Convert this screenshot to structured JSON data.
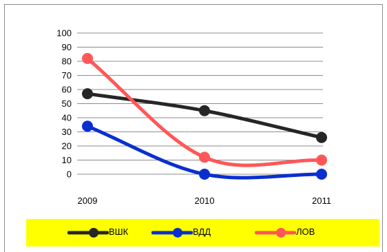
{
  "chart_data": {
    "type": "line",
    "categories": [
      "2009",
      "2010",
      "2011"
    ],
    "y_ticks": [
      0,
      10,
      20,
      30,
      40,
      50,
      60,
      70,
      80,
      90,
      100
    ],
    "ylim": [
      0,
      100
    ],
    "grid": true,
    "smooth": true,
    "legend_position": "bottom",
    "legend_background": "#ffff00",
    "series": [
      {
        "name": "ВШК",
        "color": "#262626",
        "values": [
          57,
          45,
          26
        ]
      },
      {
        "name": "ВДД",
        "color": "#0a2fd0",
        "values": [
          34,
          0,
          0
        ]
      },
      {
        "name": "ЛОВ",
        "color": "#ff5757",
        "values": [
          82,
          12,
          10
        ]
      }
    ]
  }
}
